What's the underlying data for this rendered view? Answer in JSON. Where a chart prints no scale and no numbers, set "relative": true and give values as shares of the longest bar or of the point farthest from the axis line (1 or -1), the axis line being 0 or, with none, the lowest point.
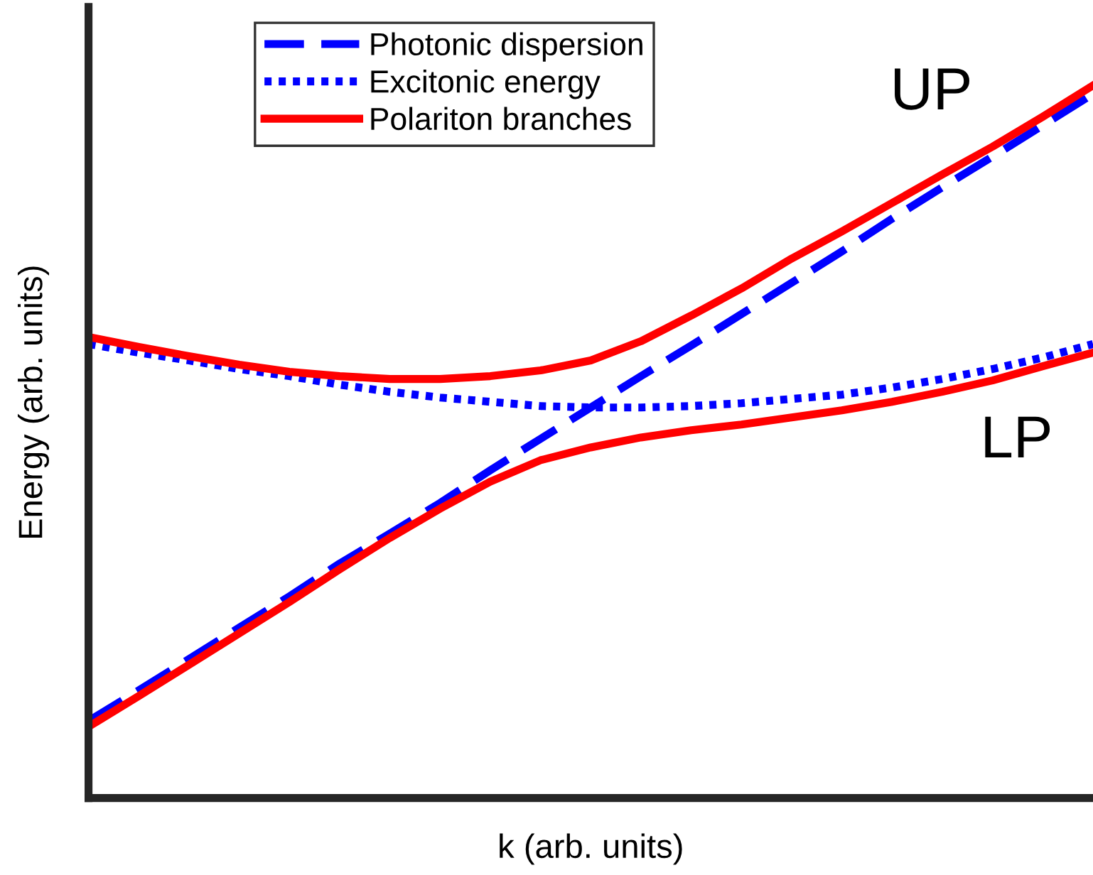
{
  "chart_data": {
    "type": "line",
    "relative": true,
    "xlabel": "k (arb. units)",
    "ylabel": "Energy (arb. units)",
    "legend": "top left",
    "marker": "none",
    "categories": [
      null,
      null,
      null,
      null,
      null,
      null,
      null,
      null,
      null,
      null,
      null,
      null,
      null,
      null,
      null,
      null,
      null,
      null,
      null,
      null,
      null
    ],
    "series": [
      {
        "name": "Photonic dispersion",
        "color": "#0000ff",
        "line_style": "dashed",
        "values": [
          0.108,
          0.151,
          0.195,
          0.239,
          0.283,
          0.329,
          0.371,
          0.414,
          0.46,
          0.504,
          0.548,
          0.592,
          0.635,
          0.679,
          0.723,
          0.767,
          0.813,
          0.857,
          0.9,
          0.944,
          0.988
        ]
      },
      {
        "name": "Excitonic energy",
        "color": "#0000ff",
        "line_style": "dotted",
        "values": [
          0.637,
          0.625,
          0.614,
          0.602,
          0.592,
          0.58,
          0.57,
          0.562,
          0.556,
          0.55,
          0.548,
          0.548,
          0.55,
          0.554,
          0.56,
          0.566,
          0.576,
          0.588,
          0.602,
          0.618,
          0.637
        ]
      },
      {
        "name": "Polariton branches",
        "color": "#ff0000",
        "line_style": "solid",
        "values": [
          0.647,
          0.633,
          0.62,
          0.608,
          0.598,
          0.592,
          0.588,
          0.588,
          0.592,
          0.6,
          0.614,
          0.641,
          0.677,
          0.715,
          0.757,
          0.795,
          0.835,
          0.875,
          0.914,
          0.956,
          1.0
        ]
      },
      {
        "color": "#ff0000",
        "line_style": "solid",
        "values": [
          0.1,
          0.143,
          0.187,
          0.231,
          0.275,
          0.321,
          0.365,
          0.406,
          0.444,
          0.474,
          0.492,
          0.506,
          0.516,
          0.524,
          0.534,
          0.544,
          0.556,
          0.57,
          0.586,
          0.606,
          0.625
        ]
      }
    ],
    "annotations": [
      "UP",
      "LP"
    ]
  }
}
